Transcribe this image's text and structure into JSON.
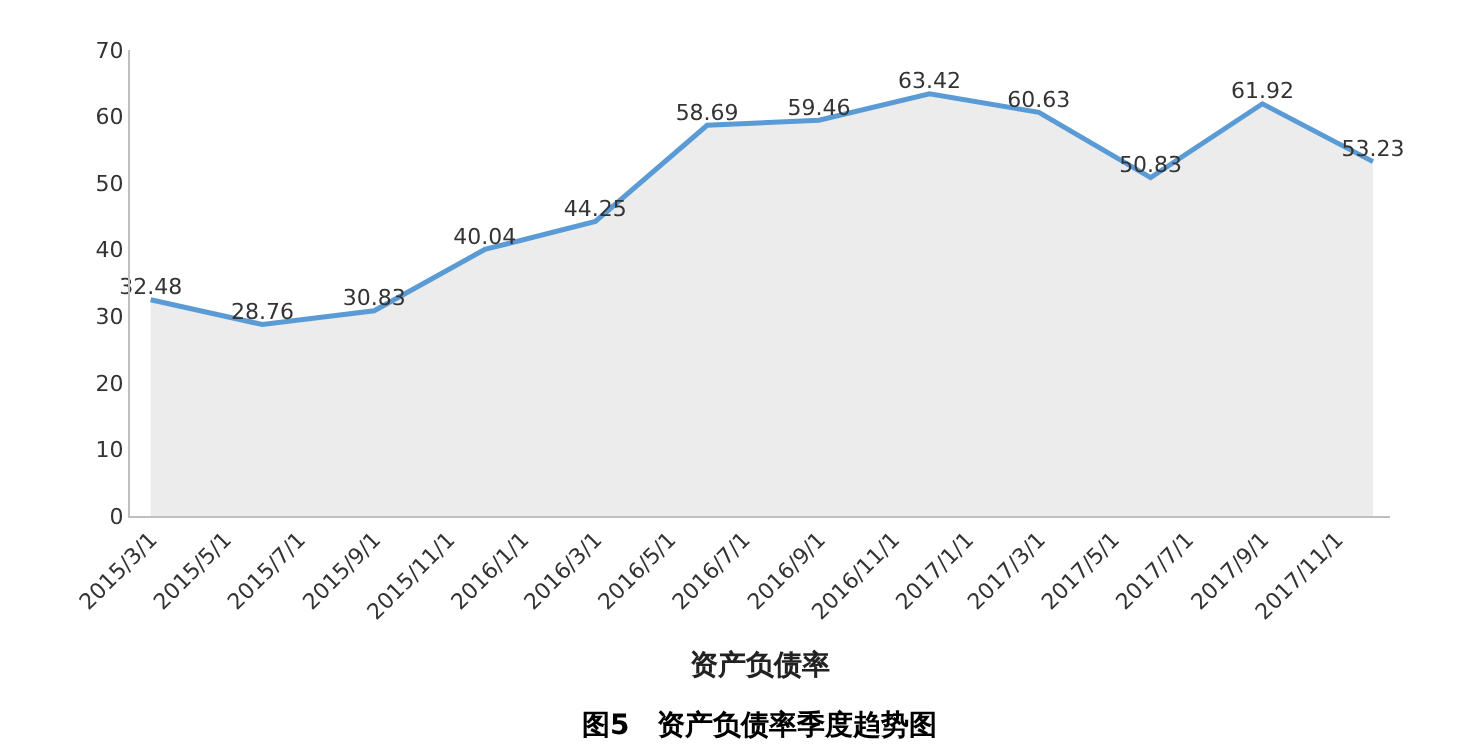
{
  "chart_data": {
    "type": "area",
    "title": "图5　资产负债率季度趋势图",
    "xlabel": "资产负债率",
    "x": [
      "2015-03-01",
      "2015-06-01",
      "2015-09-01",
      "2015-12-01",
      "2016-03-01",
      "2016-06-01",
      "2016-09-01",
      "2016-12-01",
      "2017-03-01",
      "2017-06-01",
      "2017-09-01",
      "2017-12-01"
    ],
    "series": [
      {
        "color": "#5b9bd5",
        "values": [
          32.48,
          28.76,
          30.83,
          40.04,
          44.25,
          58.69,
          59.46,
          63.42,
          60.63,
          50.83,
          61.92,
          53.23
        ]
      }
    ],
    "data_labels": true,
    "marker": "none",
    "line_style": "solid",
    "legend": false,
    "xlim": [
      "2015-02-12",
      "2017-12-15"
    ],
    "xticks": [
      {
        "value": "2015-03-01",
        "label": "2015/3/1"
      },
      {
        "value": "2015-05-01",
        "label": "2015/5/1"
      },
      {
        "value": "2015-07-01",
        "label": "2015/7/1"
      },
      {
        "value": "2015-09-01",
        "label": "2015/9/1"
      },
      {
        "value": "2015-11-01",
        "label": "2015/11/1"
      },
      {
        "value": "2016-01-01",
        "label": "2016/1/1"
      },
      {
        "value": "2016-03-01",
        "label": "2016/3/1"
      },
      {
        "value": "2016-05-01",
        "label": "2016/5/1"
      },
      {
        "value": "2016-07-01",
        "label": "2016/7/1"
      },
      {
        "value": "2016-09-01",
        "label": "2016/9/1"
      },
      {
        "value": "2016-11-01",
        "label": "2016/11/1"
      },
      {
        "value": "2017-01-01",
        "label": "2017/1/1"
      },
      {
        "value": "2017-03-01",
        "label": "2017/3/1"
      },
      {
        "value": "2017-05-01",
        "label": "2017/5/1"
      },
      {
        "value": "2017-07-01",
        "label": "2017/7/1"
      },
      {
        "value": "2017-09-01",
        "label": "2017/9/1"
      },
      {
        "value": "2017-11-01",
        "label": "2017/11/1"
      }
    ],
    "ylim": [
      0,
      70
    ],
    "yticks": [
      0,
      10,
      20,
      30,
      40,
      50,
      60,
      70
    ]
  }
}
